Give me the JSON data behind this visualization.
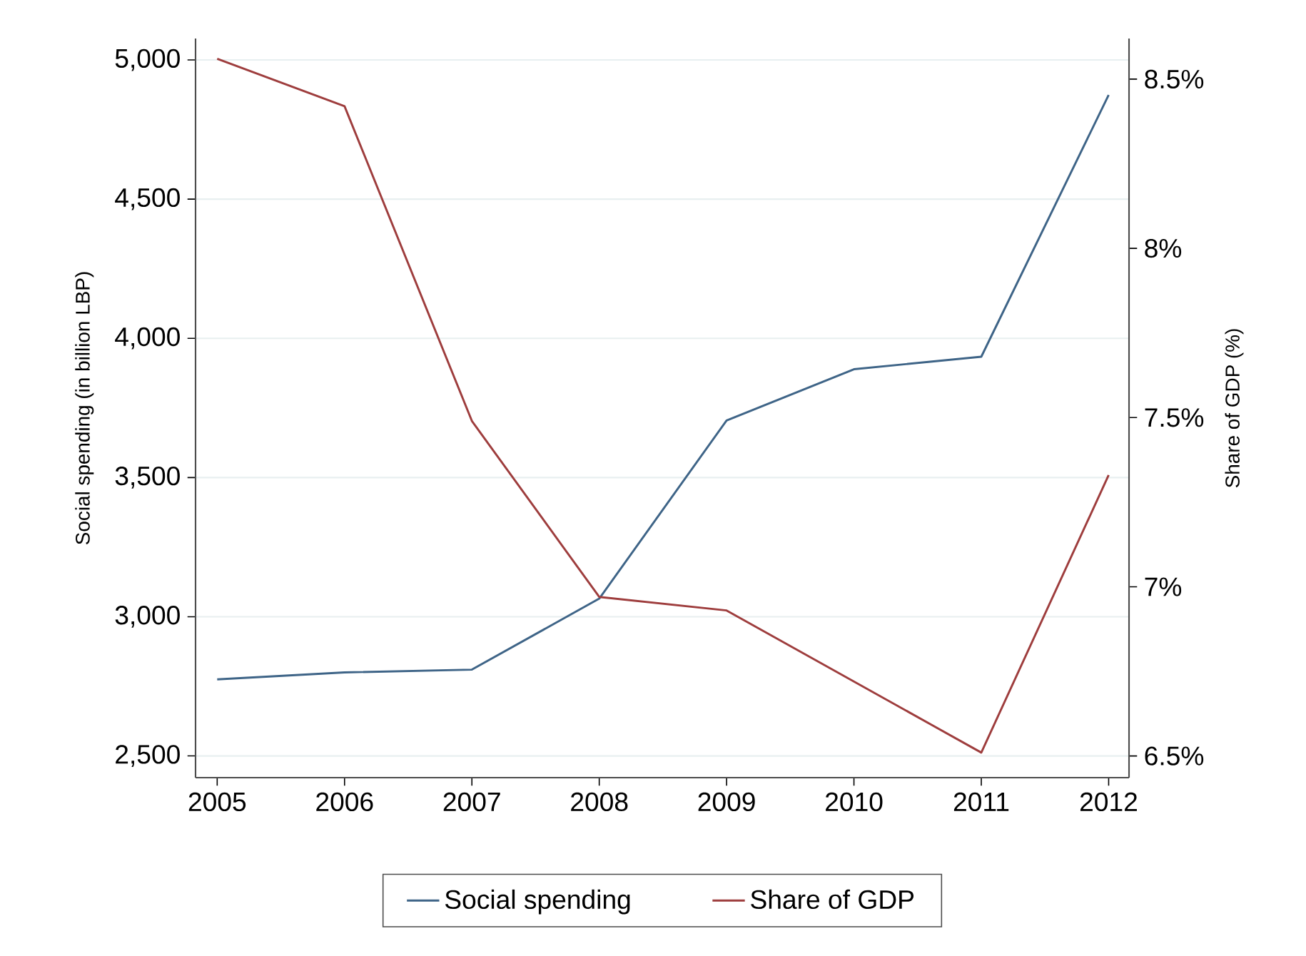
{
  "chart_data": {
    "type": "line",
    "ylabel": "Social spending (in billion LBP)",
    "y2label": "Share of GDP (%)",
    "x": [
      2005,
      2006,
      2007,
      2008,
      2009,
      2010,
      2011,
      2012
    ],
    "series": [
      {
        "name": "Social spending",
        "color": "#3e6487",
        "values": [
          2775,
          2800,
          2810,
          3065,
          3705,
          3889,
          3934,
          4874
        ]
      },
      {
        "name": "Share of GDP",
        "color": "#9e3d3d",
        "axis": "y2",
        "values": [
          8.56,
          8.42,
          7.49,
          6.97,
          6.93,
          6.72,
          6.51,
          7.33
        ]
      }
    ],
    "xlim": [
      2004.83,
      2012.16
    ],
    "xticks": [
      2005,
      2006,
      2007,
      2008,
      2009,
      2010,
      2011,
      2012
    ],
    "ylim": [
      2422,
      5077
    ],
    "yticks": [
      {
        "value": 2500,
        "label": "2,500"
      },
      {
        "value": 3000,
        "label": "3,000"
      },
      {
        "value": 3500,
        "label": "3,500"
      },
      {
        "value": 4000,
        "label": "4,000"
      },
      {
        "value": 4500,
        "label": "4,500"
      },
      {
        "value": 5000,
        "label": "5,000"
      }
    ],
    "y2lim": [
      6.436,
      8.62
    ],
    "y2ticks": [
      {
        "value": 6.5,
        "label": "6.5%"
      },
      {
        "value": 7,
        "label": "7%"
      },
      {
        "value": 7.5,
        "label": "7.5%"
      },
      {
        "value": 8,
        "label": "8%"
      },
      {
        "value": 8.5,
        "label": "8.5%"
      }
    ],
    "grid": "y",
    "legend": "bottom",
    "marker": "none",
    "line_style": "solid"
  }
}
